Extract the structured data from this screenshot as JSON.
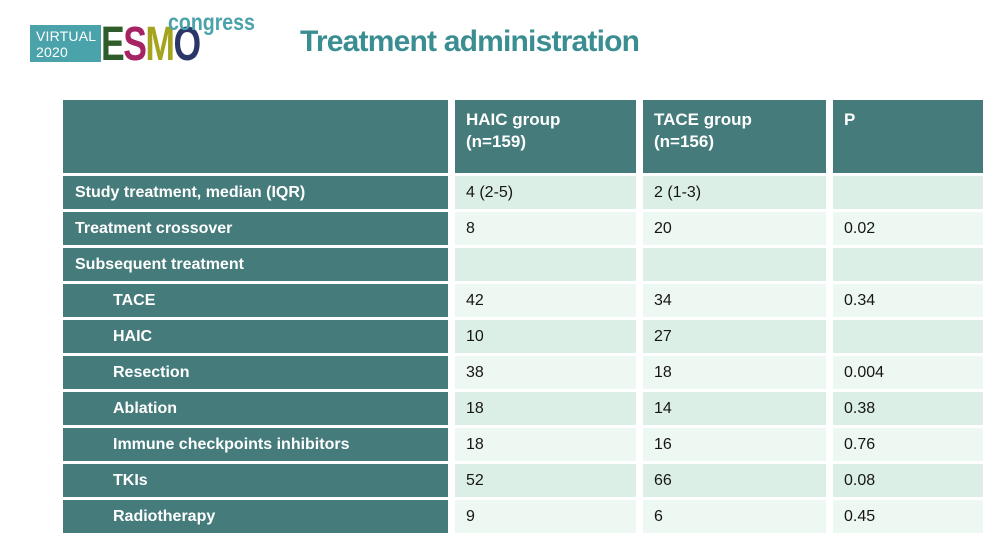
{
  "slide": {
    "title": "Treatment administration",
    "title_color": "#3a8e92",
    "background_color": "#ffffff"
  },
  "logo": {
    "virtual_line1": "VIRTUAL",
    "virtual_line2": "2020",
    "box_color": "#4aa3aa",
    "esmo_letters": [
      {
        "char": "E",
        "color": "#2e5c2a"
      },
      {
        "char": "S",
        "color": "#a62364"
      },
      {
        "char": "M",
        "color": "#a4a41e"
      },
      {
        "char": "O",
        "color": "#2a3767"
      }
    ],
    "congress": "congress",
    "congress_color": "#4aa3aa"
  },
  "table": {
    "colors": {
      "header_bg": "#457c7b",
      "header_text": "#ffffff",
      "row_shade_dark": "#dcefe6",
      "row_shade_light": "#eef8f2",
      "data_text": "#161616"
    },
    "header": {
      "col0": "",
      "col1_line1": "HAIC group",
      "col1_line2": "(n=159)",
      "col2_line1": "TACE group",
      "col2_line2": "(n=156)",
      "col3": "P"
    },
    "rows": [
      {
        "label": "Study treatment, median (IQR)",
        "haic": "4 (2-5)",
        "tace": "2 (1-3)",
        "p": ""
      },
      {
        "label": "Treatment crossover",
        "haic": "8",
        "tace": "20",
        "p": "0.02"
      },
      {
        "label": "Subsequent treatment",
        "haic": "",
        "tace": "",
        "p": ""
      },
      {
        "label": "TACE",
        "haic": "42",
        "tace": "34",
        "p": "0.34"
      },
      {
        "label": "HAIC",
        "haic": "10",
        "tace": "27",
        "p": ""
      },
      {
        "label": "Resection",
        "haic": "38",
        "tace": "18",
        "p": "0.004"
      },
      {
        "label": "Ablation",
        "haic": "18",
        "tace": "14",
        "p": "0.38"
      },
      {
        "label": "Immune checkpoints inhibitors",
        "haic": "18",
        "tace": "16",
        "p": "0.76"
      },
      {
        "label": "TKIs",
        "haic": "52",
        "tace": "66",
        "p": "0.08"
      },
      {
        "label": "Radiotherapy",
        "haic": "9",
        "tace": "6",
        "p": "0.45"
      }
    ]
  }
}
